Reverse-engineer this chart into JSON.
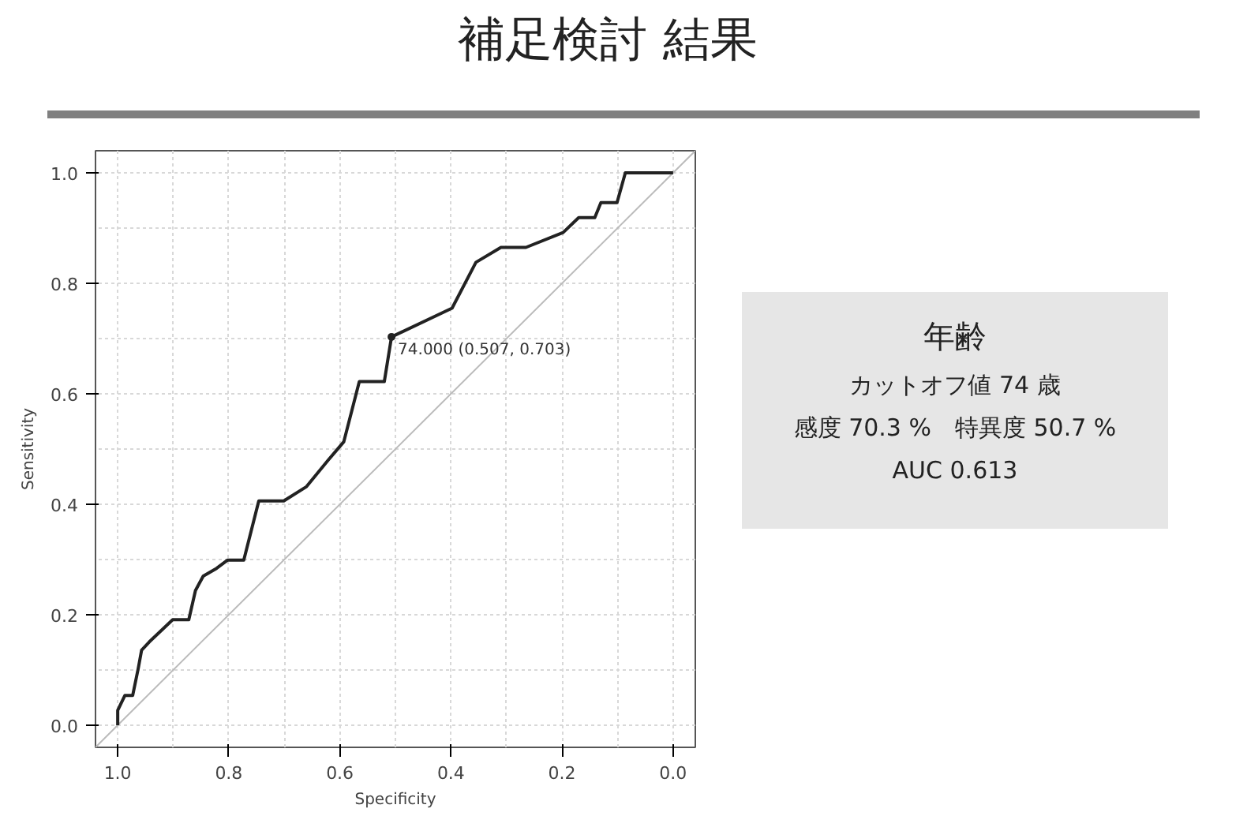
{
  "chart_data": {
    "type": "line",
    "title": "補足検討 結果",
    "xlabel": "Specificity",
    "ylabel": "Sensitivity",
    "xlim": [
      1.04,
      -0.04
    ],
    "ylim": [
      -0.04,
      1.04
    ],
    "xticks": [
      {
        "value": 0,
        "label": "0.0"
      },
      {
        "value": 0.1,
        "label": null
      },
      0.2,
      {
        "value": 0.3,
        "label": null
      },
      0.4,
      {
        "value": 0.5,
        "label": null
      },
      0.6,
      {
        "value": 0.7,
        "label": null
      },
      0.8,
      {
        "value": 0.9,
        "label": null
      },
      {
        "value": 1,
        "label": "1.0"
      }
    ],
    "yticks": [
      {
        "value": 0,
        "label": "0.0"
      },
      {
        "value": 0.1,
        "label": null
      },
      0.2,
      {
        "value": 0.3,
        "label": null
      },
      0.4,
      {
        "value": 0.5,
        "label": null
      },
      0.6,
      {
        "value": 0.7,
        "label": null
      },
      0.8,
      {
        "value": 0.9,
        "label": null
      },
      {
        "value": 1,
        "label": "1.0"
      }
    ],
    "grid": true,
    "marker": "none",
    "line_style": "solid",
    "series": [
      {
        "color": "#bbbbbb",
        "x": [
          1.04,
          -0.04
        ],
        "values": [
          -0.04,
          1.04
        ]
      },
      {
        "color": "#222222",
        "x": [
          1.0,
          1.0,
          0.987,
          0.973,
          0.963,
          0.957,
          0.943,
          0.901,
          0.872,
          0.86,
          0.846,
          0.822,
          0.802,
          0.773,
          0.746,
          0.701,
          0.66,
          0.621,
          0.593,
          0.565,
          0.52,
          0.507,
          0.398,
          0.355,
          0.31,
          0.265,
          0.198,
          0.17,
          0.141,
          0.13,
          0.101,
          0.086,
          0.0
        ],
        "values": [
          0.0,
          0.027,
          0.054,
          0.054,
          0.103,
          0.136,
          0.151,
          0.191,
          0.191,
          0.244,
          0.27,
          0.284,
          0.299,
          0.299,
          0.406,
          0.406,
          0.432,
          0.48,
          0.513,
          0.622,
          0.622,
          0.703,
          0.755,
          0.838,
          0.865,
          0.865,
          0.892,
          0.919,
          0.919,
          0.946,
          0.946,
          1.0,
          1.0
        ]
      }
    ],
    "annotations": [
      {
        "text": "74.000 (0.507, 0.703)",
        "x": 0.507,
        "y": 0.703
      },
      "年齢",
      "カットオフ値 74 歳",
      "感度 70.3 %　特異度 50.7 %",
      "AUC 0.613"
    ]
  }
}
